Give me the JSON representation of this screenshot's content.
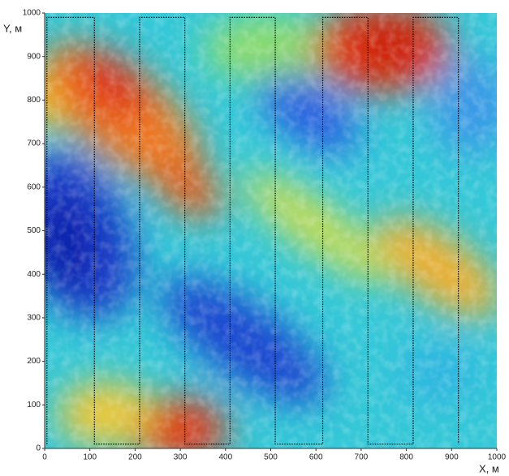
{
  "chart_data": {
    "type": "line",
    "xlabel": "X, м",
    "ylabel": "Y, м",
    "xlim": [
      0,
      1000
    ],
    "ylim": [
      0,
      1000
    ],
    "xticks": [
      0,
      100,
      200,
      300,
      400,
      500,
      600,
      700,
      800,
      900,
      1000
    ],
    "yticks": [
      0,
      100,
      200,
      300,
      400,
      500,
      600,
      700,
      800,
      900,
      1000
    ],
    "series": [
      {
        "color": "#000000",
        "x": [
          5,
          5,
          110,
          110,
          210,
          210,
          310,
          310,
          410,
          410,
          510,
          510,
          615,
          615,
          715,
          715,
          815,
          815,
          915,
          915
        ],
        "y": [
          10,
          990,
          990,
          10,
          10,
          990,
          990,
          10,
          10,
          990,
          990,
          10,
          10,
          990,
          990,
          10,
          10,
          990,
          990,
          10
        ]
      }
    ]
  }
}
